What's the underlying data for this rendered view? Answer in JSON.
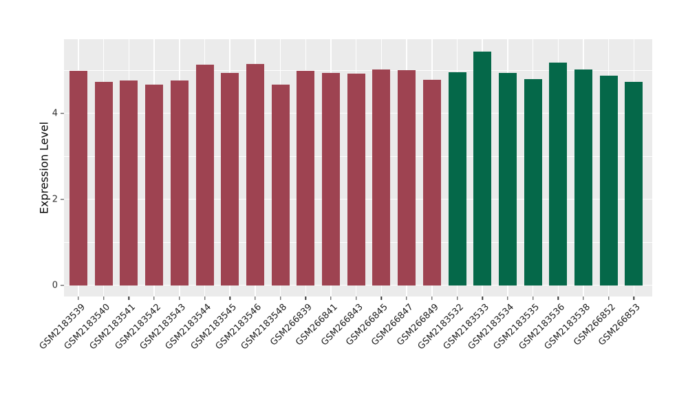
{
  "figure": {
    "background_color": "#ffffff",
    "panel_background_color": "#ebebeb",
    "gridline_color": "#ffffff",
    "tick_color": "#333333",
    "axis_text_color": "#1a1a1a"
  },
  "chart_data": {
    "type": "bar",
    "title": "",
    "xlabel": "",
    "ylabel": "Expression Level",
    "ylim": [
      0,
      5.71
    ],
    "yticks_major": [
      0,
      2,
      4
    ],
    "yticks_minor": [
      1,
      3,
      5
    ],
    "grid": "on",
    "legend_position": "none",
    "x_label_rotation_deg": 45,
    "categories": [
      "GSM2183539",
      "GSM2183540",
      "GSM2183541",
      "GSM2183542",
      "GSM2183543",
      "GSM2183544",
      "GSM2183545",
      "GSM2183546",
      "GSM2183548",
      "GSM266839",
      "GSM266841",
      "GSM266843",
      "GSM266845",
      "GSM266847",
      "GSM266849",
      "GSM2183532",
      "GSM2183533",
      "GSM2183534",
      "GSM2183535",
      "GSM2183536",
      "GSM2183538",
      "GSM266852",
      "GSM266853"
    ],
    "values": [
      4.99,
      4.73,
      4.76,
      4.66,
      4.76,
      5.13,
      4.93,
      5.14,
      4.66,
      4.98,
      4.94,
      4.92,
      5.01,
      5.0,
      4.77,
      4.95,
      5.44,
      4.93,
      4.79,
      5.17,
      5.02,
      4.88,
      4.73
    ],
    "bar_colors": [
      "#9e4351",
      "#9e4351",
      "#9e4351",
      "#9e4351",
      "#9e4351",
      "#9e4351",
      "#9e4351",
      "#9e4351",
      "#9e4351",
      "#9e4351",
      "#9e4351",
      "#9e4351",
      "#9e4351",
      "#9e4351",
      "#9e4351",
      "#056849",
      "#056849",
      "#056849",
      "#056849",
      "#056849",
      "#056849",
      "#056849",
      "#056849"
    ],
    "group_colors": {
      "left_group": "#9e4351",
      "right_group": "#056849"
    }
  }
}
